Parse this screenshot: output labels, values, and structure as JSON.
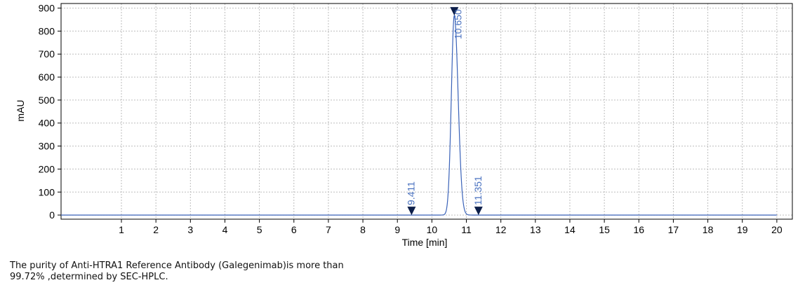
{
  "chart_data": {
    "type": "line",
    "xlabel": "Time [min]",
    "ylabel": "mAU",
    "xlim": [
      -0.75,
      20.45
    ],
    "ylim": [
      -18,
      920
    ],
    "x_ticks": [
      "1",
      "2",
      "3",
      "4",
      "5",
      "6",
      "7",
      "8",
      "9",
      "10",
      "11",
      "12",
      "13",
      "14",
      "15",
      "16",
      "17",
      "18",
      "19",
      "20"
    ],
    "y_ticks": [
      "0",
      "100",
      "200",
      "300",
      "400",
      "500",
      "600",
      "700",
      "800",
      "900"
    ],
    "grid": true,
    "colors": {
      "trace": "#3a62b8",
      "grid": "#bdbdbd",
      "label": "#4a72c0"
    },
    "series": [
      {
        "x_range": [
          -0.75,
          20.0
        ],
        "baseline": 0,
        "peak": {
          "rt": 10.65,
          "height": 868,
          "sigma_left": 0.085,
          "sigma_right": 0.11
        }
      }
    ],
    "peaks": [
      {
        "label": "9.411",
        "x": 9.411,
        "y": 0
      },
      {
        "label": "10.650",
        "x": 10.65,
        "y": 868
      },
      {
        "label": "11.351",
        "x": 11.351,
        "y": 0
      }
    ]
  },
  "caption": {
    "line1": "The purity of Anti-HTRA1 Reference Antibody (Galegenimab)is more than",
    "line2": "99.72% ,determined by SEC-HPLC."
  }
}
